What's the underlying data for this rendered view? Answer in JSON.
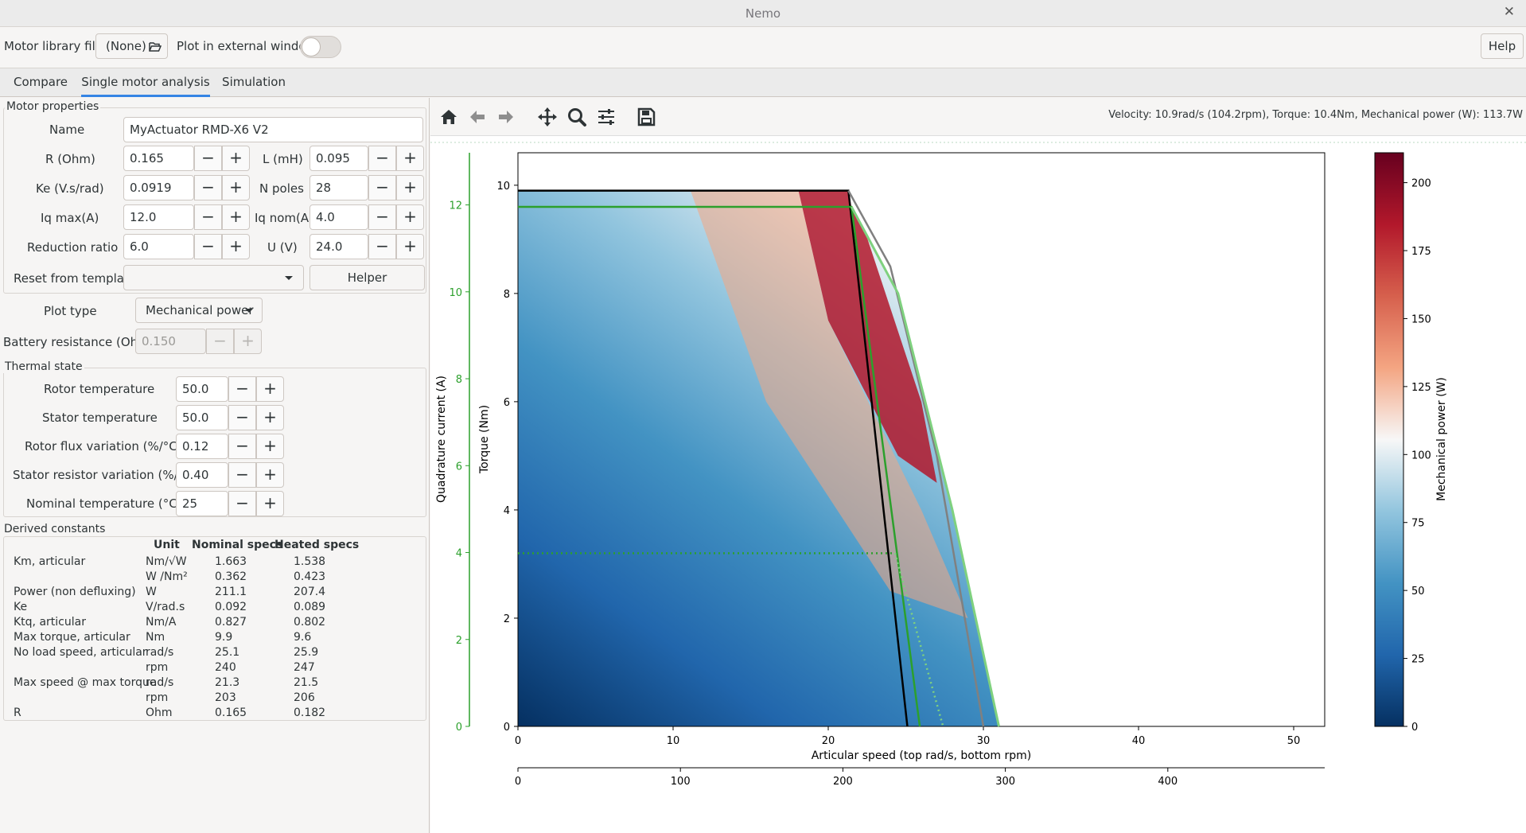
{
  "window": {
    "title": "Nemo",
    "close": "✕"
  },
  "toolbar": {
    "library_label": "Motor library file",
    "library_value": "(None)",
    "external_label": "Plot in external window",
    "help": "Help"
  },
  "tabs": [
    "Compare",
    "Single motor analysis",
    "Simulation"
  ],
  "active_tab": "Single motor analysis",
  "motor_properties": {
    "title": "Motor properties",
    "name_label": "Name",
    "name_value": "MyActuator RMD-X6 V2",
    "r_label": "R (Ohm)",
    "r_value": "0.165",
    "l_label": "L (mH)",
    "l_value": "0.095",
    "ke_label": "Ke (V.s/rad)",
    "ke_value": "0.0919",
    "npoles_label": "N poles",
    "npoles_value": "28",
    "iqmax_label": "Iq max(A)",
    "iqmax_value": "12.0",
    "iqnom_label": "Iq nom(A)",
    "iqnom_value": "4.0",
    "reduction_label": "Reduction ratio",
    "reduction_value": "6.0",
    "u_label": "U (V)",
    "u_value": "24.0",
    "reset_label": "Reset from template",
    "reset_value": "",
    "helper": "Helper"
  },
  "plot_type": {
    "label": "Plot type",
    "value": "Mechanical power"
  },
  "battery": {
    "label": "Battery resistance (Ohm)",
    "value": "0.150"
  },
  "thermal": {
    "title": "Thermal state",
    "rotor_label": "Rotor temperature",
    "rotor_value": "50.0",
    "stator_label": "Stator temperature",
    "stator_value": "50.0",
    "flux_label": "Rotor flux variation (%/°C)",
    "flux_value": "0.12",
    "resist_label": "Stator resistor variation (%/°C)",
    "resist_value": "0.40",
    "nominal_label": "Nominal temperature (°C)",
    "nominal_value": "25"
  },
  "derived": {
    "title": "Derived constants",
    "headers": [
      "Unit",
      "Nominal specs",
      "Heated specs"
    ],
    "rows": [
      {
        "name": "Km, articular",
        "unit": "Nm/√W",
        "nom": "1.663",
        "heat": "1.538"
      },
      {
        "name": "",
        "unit": "W /Nm²",
        "nom": "0.362",
        "heat": "0.423"
      },
      {
        "name": "Power (non defluxing)",
        "unit": "W",
        "nom": "211.1",
        "heat": "207.4"
      },
      {
        "name": "Ke",
        "unit": "V/rad.s",
        "nom": "0.092",
        "heat": "0.089"
      },
      {
        "name": "Ktq, articular",
        "unit": "Nm/A",
        "nom": "0.827",
        "heat": "0.802"
      },
      {
        "name": "Max torque, articular",
        "unit": "Nm",
        "nom": "9.9",
        "heat": "9.6"
      },
      {
        "name": "No load speed, articular",
        "unit": "rad/s",
        "nom": "25.1",
        "heat": "25.9"
      },
      {
        "name": "",
        "unit": "rpm",
        "nom": "240",
        "heat": "247"
      },
      {
        "name": "Max speed @ max torque",
        "unit": "rad/s",
        "nom": "21.3",
        "heat": "21.5"
      },
      {
        "name": "",
        "unit": "rpm",
        "nom": "203",
        "heat": "206"
      },
      {
        "name": "R",
        "unit": "Ohm",
        "nom": "0.165",
        "heat": "0.182"
      }
    ]
  },
  "plot": {
    "status": "Velocity: 10.9rad/s (104.2rpm), Torque: 10.4Nm, Mechanical power (W): 113.7W",
    "icons": [
      "home-icon",
      "back-icon",
      "forward-icon",
      "pan-icon",
      "zoom-icon",
      "configure-icon",
      "save-icon"
    ]
  },
  "chart_data": {
    "type": "heatmap",
    "xlabel": "Articular speed (top rad/s, bottom rpm)",
    "ylabel": "Torque (Nm)",
    "ylabel2": "Quadrature current (A)",
    "colorbar_label": "Mechanical power (W)",
    "xlim": [
      0,
      52
    ],
    "ylim": [
      0,
      10.6
    ],
    "xticks": [
      "0",
      "10",
      "20",
      "30",
      "40",
      "50"
    ],
    "yticks": [
      "0",
      "2",
      "4",
      "6",
      "8",
      "10"
    ],
    "current_ticks": [
      "0",
      "2",
      "4",
      "6",
      "8",
      "10",
      "12"
    ],
    "rpm_ticks": [
      "0",
      "100",
      "200",
      "300",
      "400"
    ],
    "colorbar_ticks": [
      "0",
      "25",
      "50",
      "75",
      "100",
      "125",
      "150",
      "175",
      "200"
    ],
    "colorbar_range": [
      0,
      211
    ],
    "colormap": [
      "#053061",
      "#2166ac",
      "#4393c3",
      "#92c5de",
      "#f7f7f7",
      "#f4a582",
      "#d6604d",
      "#b2182b",
      "#67001f"
    ],
    "curves": [
      {
        "color": "#000000",
        "points": [
          [
            0,
            9.9
          ],
          [
            21.3,
            9.9
          ],
          [
            25.1,
            0
          ]
        ]
      },
      {
        "color": "#2ca02c",
        "points": [
          [
            0,
            9.6
          ],
          [
            21.5,
            9.6
          ],
          [
            25.9,
            0
          ]
        ]
      },
      {
        "color": "#808080",
        "points": [
          [
            21.3,
            9.9
          ],
          [
            24,
            8.5
          ],
          [
            27,
            5
          ],
          [
            30,
            0
          ]
        ]
      },
      {
        "color": "#7fd17f",
        "points": [
          [
            21.5,
            9.6
          ],
          [
            24.5,
            8.0
          ],
          [
            28,
            4.0
          ],
          [
            31,
            0
          ]
        ]
      }
    ],
    "nominal_torque": 3.2
  }
}
